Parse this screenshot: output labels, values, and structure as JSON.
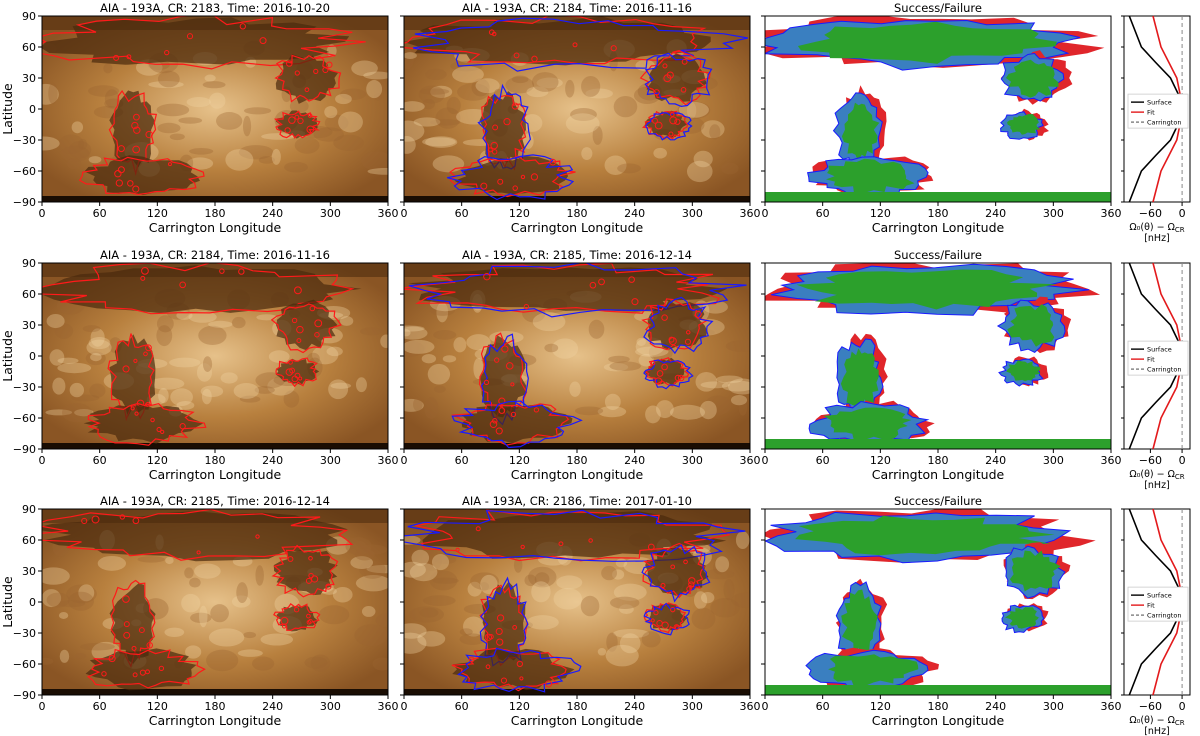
{
  "colors": {
    "aia_dark": "#4a2a0d",
    "aia_mid": "#a8692c",
    "aia_light": "#e8c490",
    "contour_red": "#ff1a1a",
    "contour_blue": "#1a1aff",
    "success_green": "#2ca02c",
    "success_blue": "#3a7fc0",
    "failure_red": "#e0262b",
    "surface_line": "#000000",
    "fit_line": "#e31a1c",
    "carrington_line": "#888888"
  },
  "rows": [
    {
      "panel1_title": "AIA - 193A, CR: 2183, Time: 2016-10-20",
      "panel2_title": "AIA - 193A, CR: 2184, Time: 2016-11-16",
      "panel3_title": "Success/Failure"
    },
    {
      "panel1_title": "AIA - 193A, CR: 2184, Time: 2016-11-16",
      "panel2_title": "AIA - 193A, CR: 2185, Time: 2016-12-14",
      "panel3_title": "Success/Failure"
    },
    {
      "panel1_title": "AIA - 193A, CR: 2185, Time: 2016-12-14",
      "panel2_title": "AIA - 193A, CR: 2186, Time: 2017-01-10",
      "panel3_title": "Success/Failure"
    }
  ],
  "axes": {
    "xlabel": "Carrington Longitude",
    "ylabel": "Latitude",
    "xticks": [
      "0",
      "60",
      "120",
      "180",
      "240",
      "300",
      "360"
    ],
    "yticks": [
      "90",
      "60",
      "30",
      "0",
      "−30",
      "−60",
      "−90"
    ],
    "xlim": [
      0,
      360
    ],
    "ylim": [
      -90,
      90
    ]
  },
  "profile": {
    "xticks": [
      "−60",
      "0"
    ],
    "xlabel_line1": "Ω₀(θ) − Ω",
    "xlabel_sub": "CR",
    "xlabel_line2": "[nHz]",
    "legend": [
      "Surface",
      "Fit",
      "Carrington"
    ]
  },
  "chart_data": {
    "type": "line",
    "title": "",
    "xlabel": "Ω₀(θ) − Ω_CR [nHz]",
    "ylabel": "Latitude",
    "ylim": [
      -90,
      90
    ],
    "xlim": [
      -110,
      15
    ],
    "series": [
      {
        "name": "Surface",
        "x": [
          -100,
          -77,
          -50,
          -22,
          -3,
          0,
          -3,
          -22,
          -50,
          -77,
          -100
        ],
        "y": [
          -90,
          -60,
          -45,
          -30,
          -10,
          0,
          10,
          30,
          45,
          60,
          90
        ]
      },
      {
        "name": "Fit",
        "x": [
          -55,
          -40,
          -25,
          -10,
          -2,
          0,
          -2,
          -10,
          -25,
          -40,
          -55
        ],
        "y": [
          -90,
          -60,
          -45,
          -30,
          -10,
          0,
          10,
          30,
          45,
          60,
          90
        ]
      },
      {
        "name": "Carrington",
        "x": [
          0,
          0
        ],
        "y": [
          -90,
          90
        ]
      }
    ]
  }
}
